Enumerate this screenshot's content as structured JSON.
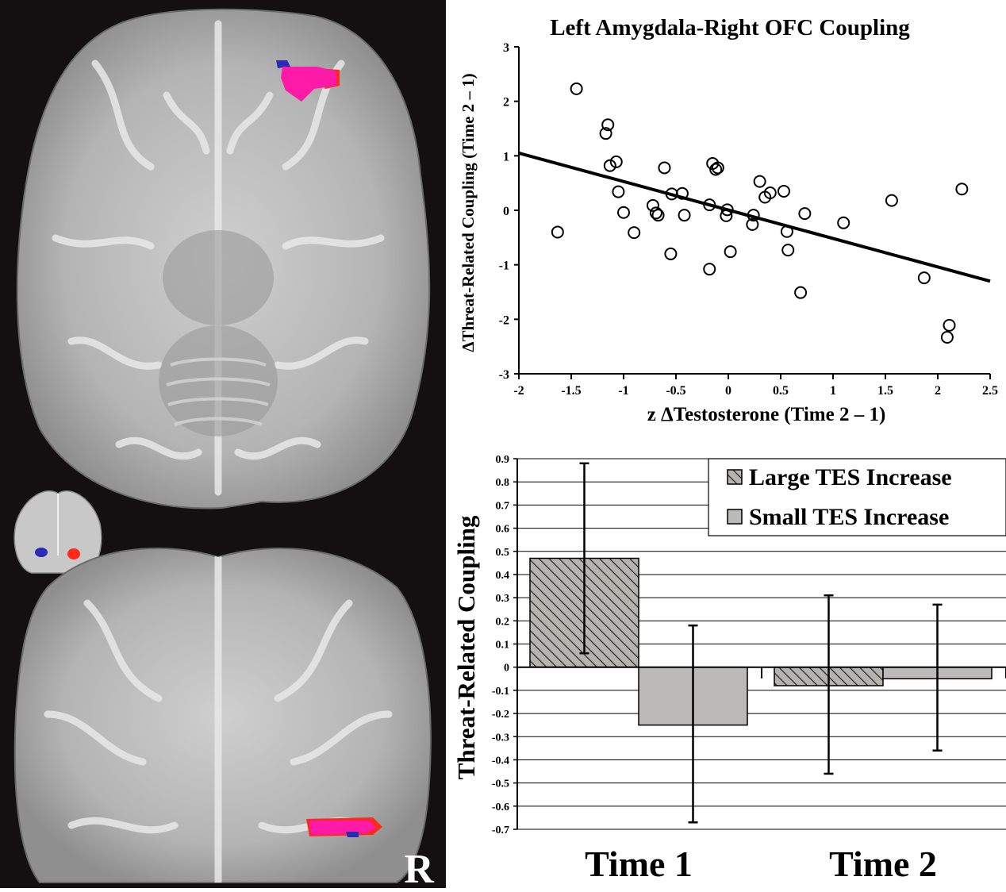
{
  "brain_panel": {
    "orientation_label": "R",
    "colors": {
      "background": "#140f10",
      "overlap": "#ff1aa8",
      "red_cluster": "#ff2a1a",
      "blue_cluster": "#2a2ab4"
    }
  },
  "chart_data": [
    {
      "type": "scatter",
      "title": "Left Amygdala-Right OFC Coupling",
      "xlabel": "z ΔTestosterone (Time 2 – 1)",
      "ylabel": "ΔThreat-Related Coupling (Time 2 – 1)",
      "xlim": [
        -2,
        2.5
      ],
      "ylim": [
        -3,
        3
      ],
      "xticks": [
        "-2",
        "-1.5",
        "-1",
        "-0.5",
        "0",
        "0.5",
        "1",
        "1.5",
        "2",
        "2.5"
      ],
      "xtick_values": [
        -2,
        -1.5,
        -1,
        -0.5,
        0,
        0.5,
        1,
        1.5,
        2,
        2.5
      ],
      "yticks": [
        "3",
        "2",
        "1",
        "0",
        "-1",
        "-2",
        "-3"
      ],
      "ytick_values": [
        3,
        2,
        1,
        0,
        -1,
        -2,
        -3
      ],
      "grid": false,
      "marker": "open-circle",
      "points": [
        {
          "x": -1.63,
          "y": -0.4
        },
        {
          "x": -1.45,
          "y": 2.23
        },
        {
          "x": -1.17,
          "y": 1.41
        },
        {
          "x": -1.15,
          "y": 1.57
        },
        {
          "x": -1.13,
          "y": 0.82
        },
        {
          "x": -1.07,
          "y": 0.89
        },
        {
          "x": -1.05,
          "y": 0.34
        },
        {
          "x": -1.0,
          "y": -0.04
        },
        {
          "x": -0.9,
          "y": -0.41
        },
        {
          "x": -0.72,
          "y": 0.09
        },
        {
          "x": -0.69,
          "y": -0.05
        },
        {
          "x": -0.67,
          "y": -0.09
        },
        {
          "x": -0.61,
          "y": 0.78
        },
        {
          "x": -0.55,
          "y": -0.8
        },
        {
          "x": -0.54,
          "y": 0.3
        },
        {
          "x": -0.44,
          "y": 0.31
        },
        {
          "x": -0.42,
          "y": -0.09
        },
        {
          "x": -0.18,
          "y": -1.08
        },
        {
          "x": -0.18,
          "y": 0.1
        },
        {
          "x": -0.15,
          "y": 0.86
        },
        {
          "x": -0.12,
          "y": 0.75
        },
        {
          "x": -0.1,
          "y": 0.78
        },
        {
          "x": -0.02,
          "y": -0.1
        },
        {
          "x": -0.01,
          "y": 0.01
        },
        {
          "x": 0.02,
          "y": -0.76
        },
        {
          "x": 0.23,
          "y": -0.26
        },
        {
          "x": 0.24,
          "y": -0.09
        },
        {
          "x": 0.3,
          "y": 0.53
        },
        {
          "x": 0.35,
          "y": 0.24
        },
        {
          "x": 0.4,
          "y": 0.32
        },
        {
          "x": 0.53,
          "y": 0.35
        },
        {
          "x": 0.56,
          "y": -0.39
        },
        {
          "x": 0.57,
          "y": -0.73
        },
        {
          "x": 0.69,
          "y": -1.51
        },
        {
          "x": 0.73,
          "y": -0.06
        },
        {
          "x": 1.1,
          "y": -0.23
        },
        {
          "x": 1.56,
          "y": 0.18
        },
        {
          "x": 1.87,
          "y": -1.24
        },
        {
          "x": 2.09,
          "y": -2.33
        },
        {
          "x": 2.11,
          "y": -2.11
        },
        {
          "x": 2.23,
          "y": 0.39
        }
      ],
      "fit_line": {
        "x": [
          -2,
          2.5
        ],
        "y": [
          1.05,
          -1.3
        ]
      }
    },
    {
      "type": "bar",
      "xlabel": "",
      "ylabel": "Threat-Related Coupling",
      "ylim": [
        -0.7,
        0.9
      ],
      "yticks": [
        "0.9",
        "0.8",
        "0.7",
        "0.6",
        "0.5",
        "0.4",
        "0.3",
        "0.2",
        "0.1",
        "0",
        "-0.1",
        "-0.2",
        "-0.3",
        "-0.4",
        "-0.5",
        "-0.6",
        "-0.7"
      ],
      "ytick_values": [
        0.9,
        0.8,
        0.7,
        0.6,
        0.5,
        0.4,
        0.3,
        0.2,
        0.1,
        0,
        -0.1,
        -0.2,
        -0.3,
        -0.4,
        -0.5,
        -0.6,
        -0.7
      ],
      "grid": true,
      "legend_position": "top-right",
      "categories": [
        "Time 1",
        "Time 2"
      ],
      "series": [
        {
          "name": "Large TES Increase",
          "values": [
            0.47,
            -0.08
          ],
          "error_low": [
            0.06,
            -0.46
          ],
          "error_high": [
            0.88,
            0.31
          ],
          "fill": "hatched",
          "color": "#b7b4b0"
        },
        {
          "name": "Small TES Increase",
          "values": [
            -0.25,
            -0.05
          ],
          "error_low": [
            -0.67,
            -0.36
          ],
          "error_high": [
            0.18,
            0.27
          ],
          "fill": "solid",
          "color": "#bcbab8"
        }
      ]
    }
  ]
}
